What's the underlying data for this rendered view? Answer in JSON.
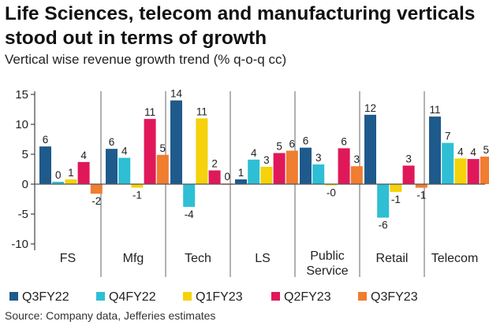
{
  "header": {
    "title": "Life Sciences, telecom and manufacturing verticals stood out in terms of growth",
    "subtitle": "Vertical wise revenue growth trend (% q-o-q cc)"
  },
  "footer": {
    "source": "Source: Company data, Jefferies estimates"
  },
  "chart_data": {
    "type": "bar",
    "title": "Life Sciences, telecom and manufacturing verticals stood out in terms of growth",
    "subtitle": "Vertical wise revenue growth trend (% q-o-q cc)",
    "xlabel": "",
    "ylabel": "",
    "ylim": [
      -10,
      15
    ],
    "yticks": [
      "15",
      "10",
      "5",
      "0",
      "-5",
      "-10"
    ],
    "ytick_values": [
      15,
      10,
      5,
      0,
      -5,
      -10
    ],
    "grid": false,
    "legend_position": "bottom",
    "categories": [
      "FS",
      "Mfg",
      "Tech",
      "LS",
      "Public Service",
      "Retail",
      "Telecom"
    ],
    "series": [
      {
        "name": "Q3FY22",
        "color": "#1f5a8c",
        "values": [
          6.3,
          5.9,
          14.0,
          0.8,
          6.1,
          11.6,
          11.3
        ],
        "labels": [
          "6",
          "6",
          "14",
          "1",
          "6",
          "12",
          "11"
        ]
      },
      {
        "name": "Q4FY22",
        "color": "#2ebfd4",
        "values": [
          0.4,
          4.4,
          -3.8,
          4.1,
          3.3,
          -5.6,
          6.9
        ],
        "labels": [
          "0",
          "4",
          "-4",
          "4",
          "3",
          "-6",
          "7"
        ]
      },
      {
        "name": "Q1FY23",
        "color": "#f5d20a",
        "values": [
          0.8,
          -0.6,
          11.0,
          2.9,
          -0.2,
          -1.3,
          4.3
        ],
        "labels": [
          "1",
          "-1",
          "11",
          "3",
          "-0",
          "-1",
          "4"
        ]
      },
      {
        "name": "Q2FY23",
        "color": "#e0185a",
        "values": [
          3.7,
          10.9,
          2.3,
          5.2,
          6.0,
          3.1,
          4.2
        ],
        "labels": [
          "4",
          "11",
          "2",
          "5",
          "6",
          "3",
          "4"
        ]
      },
      {
        "name": "Q3FY23",
        "color": "#f07d30",
        "values": [
          -1.6,
          4.9,
          0.1,
          5.6,
          3.0,
          -0.6,
          4.6
        ],
        "labels": [
          "-2",
          "5",
          "0",
          "6",
          "3",
          "-1",
          "5"
        ]
      }
    ]
  }
}
